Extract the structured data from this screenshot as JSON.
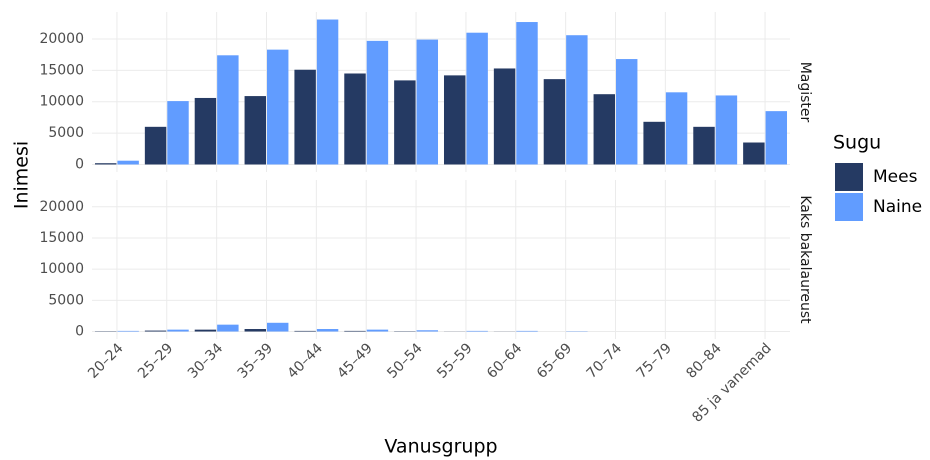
{
  "chart_data": {
    "type": "bar",
    "xlabel": "Vanusgrupp",
    "ylabel": "Inimesi",
    "legend_title": "Sugu",
    "categories": [
      "20–24",
      "25–29",
      "30–34",
      "35–39",
      "40–44",
      "45–49",
      "50–54",
      "55–59",
      "60–64",
      "65–69",
      "70–74",
      "75–79",
      "80–84",
      "85 ja vanemad"
    ],
    "series": [
      {
        "name": "Mees",
        "color": "#253a63"
      },
      {
        "name": "Naine",
        "color": "#619cff"
      }
    ],
    "facets": [
      {
        "label": "Magister",
        "values": [
          [
            200,
            6000,
            10600,
            10900,
            15100,
            14500,
            13400,
            14200,
            15300,
            13600,
            11200,
            6800,
            6000,
            3500
          ],
          [
            600,
            10100,
            17400,
            18300,
            23100,
            19700,
            19900,
            21000,
            22700,
            20600,
            16800,
            11500,
            11000,
            8500
          ]
        ]
      },
      {
        "label": "Kaks bakalaureust",
        "values": [
          [
            50,
            150,
            300,
            400,
            100,
            100,
            50,
            20,
            20,
            0,
            0,
            0,
            0,
            0
          ],
          [
            100,
            300,
            1100,
            1400,
            400,
            300,
            200,
            100,
            100,
            50,
            0,
            0,
            0,
            0
          ]
        ]
      }
    ],
    "ylim": [
      -1200,
      24300
    ],
    "yticks": [
      0,
      5000,
      10000,
      15000,
      20000
    ],
    "grid": true
  }
}
